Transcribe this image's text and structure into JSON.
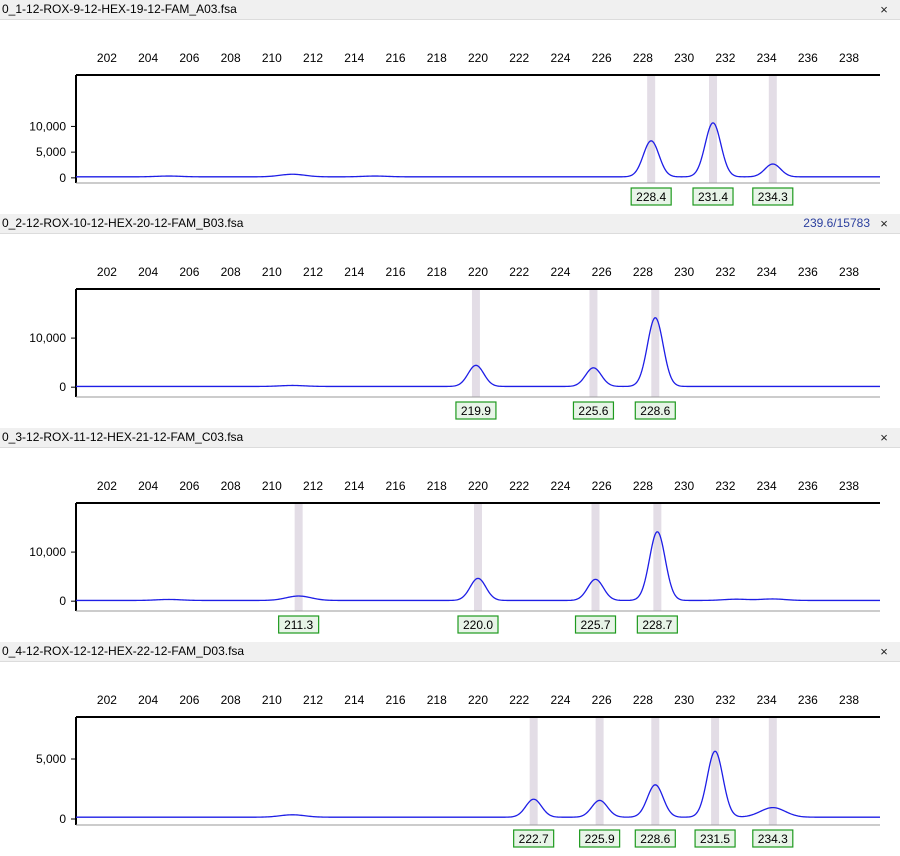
{
  "chart_data": [
    {
      "type": "line",
      "file_name": "0_1-12-ROX-9-12-HEX-19-12-FAM_A03.fsa",
      "readout": "",
      "close_label": "×",
      "x_ticks": [
        202,
        204,
        206,
        208,
        210,
        212,
        214,
        216,
        218,
        220,
        222,
        224,
        226,
        228,
        230,
        232,
        234,
        236,
        238
      ],
      "xlim": [
        200.5,
        239.5
      ],
      "ylim": [
        -1000,
        20000
      ],
      "y_ticks": [
        0,
        5000,
        10000
      ],
      "y_tick_labels": [
        "0",
        "5,000",
        "10,000"
      ],
      "baseline": 200,
      "small_peaks": [
        {
          "x": 205.0,
          "height": 150
        },
        {
          "x": 211.0,
          "height": 500
        },
        {
          "x": 215.0,
          "height": 150
        }
      ],
      "peaks": [
        {
          "x": 228.4,
          "height": 7000,
          "label": "228.4"
        },
        {
          "x": 231.4,
          "height": 10500,
          "label": "231.4"
        },
        {
          "x": 234.3,
          "height": 2500,
          "label": "234.3"
        }
      ]
    },
    {
      "type": "line",
      "file_name": "0_2-12-ROX-10-12-HEX-20-12-FAM_B03.fsa",
      "readout": "239.6/15783",
      "close_label": "×",
      "x_ticks": [
        202,
        204,
        206,
        208,
        210,
        212,
        214,
        216,
        218,
        220,
        222,
        224,
        226,
        228,
        230,
        232,
        234,
        236,
        238
      ],
      "xlim": [
        200.5,
        239.5
      ],
      "ylim": [
        -2000,
        20000
      ],
      "y_ticks": [
        0,
        10000
      ],
      "y_tick_labels": [
        "0",
        "10,000"
      ],
      "baseline": 150,
      "small_peaks": [
        {
          "x": 211.0,
          "height": 200
        }
      ],
      "peaks": [
        {
          "x": 219.9,
          "height": 4300,
          "label": "219.9"
        },
        {
          "x": 225.6,
          "height": 3800,
          "label": "225.6"
        },
        {
          "x": 228.6,
          "height": 14000,
          "label": "228.6"
        }
      ]
    },
    {
      "type": "line",
      "file_name": "0_3-12-ROX-11-12-HEX-21-12-FAM_C03.fsa",
      "readout": "",
      "close_label": "×",
      "x_ticks": [
        202,
        204,
        206,
        208,
        210,
        212,
        214,
        216,
        218,
        220,
        222,
        224,
        226,
        228,
        230,
        232,
        234,
        236,
        238
      ],
      "xlim": [
        200.5,
        239.5
      ],
      "ylim": [
        -2000,
        20000
      ],
      "y_ticks": [
        0,
        10000
      ],
      "y_tick_labels": [
        "0",
        "10,000"
      ],
      "baseline": 150,
      "small_peaks": [
        {
          "x": 205.0,
          "height": 200
        },
        {
          "x": 232.5,
          "height": 250
        },
        {
          "x": 234.3,
          "height": 300
        }
      ],
      "peaks": [
        {
          "x": 211.3,
          "height": 900,
          "label": "211.3"
        },
        {
          "x": 220.0,
          "height": 4500,
          "label": "220.0"
        },
        {
          "x": 225.7,
          "height": 4300,
          "label": "225.7"
        },
        {
          "x": 228.7,
          "height": 14000,
          "label": "228.7"
        }
      ]
    },
    {
      "type": "line",
      "file_name": "0_4-12-ROX-12-12-HEX-22-12-FAM_D03.fsa",
      "readout": "",
      "close_label": "×",
      "x_ticks": [
        202,
        204,
        206,
        208,
        210,
        212,
        214,
        216,
        218,
        220,
        222,
        224,
        226,
        228,
        230,
        232,
        234,
        236,
        238
      ],
      "xlim": [
        200.5,
        239.5
      ],
      "ylim": [
        -500,
        8500
      ],
      "y_ticks": [
        0,
        5000
      ],
      "y_tick_labels": [
        "0",
        "5,000"
      ],
      "baseline": 150,
      "small_peaks": [
        {
          "x": 211.0,
          "height": 200
        }
      ],
      "peaks": [
        {
          "x": 222.7,
          "height": 1500,
          "label": "222.7"
        },
        {
          "x": 225.9,
          "height": 1400,
          "label": "225.9"
        },
        {
          "x": 228.6,
          "height": 2700,
          "label": "228.6"
        },
        {
          "x": 231.5,
          "height": 5500,
          "label": "231.5"
        },
        {
          "x": 234.3,
          "height": 800,
          "label": "234.3"
        }
      ]
    }
  ],
  "colors": {
    "trace": "#1e1ee6",
    "highlight": "#e3dde6",
    "label_border": "#1e9a1e",
    "label_bg": "#e8f4e8",
    "header_bg": "#f0f0f0",
    "readout": "#2b3f9e"
  }
}
